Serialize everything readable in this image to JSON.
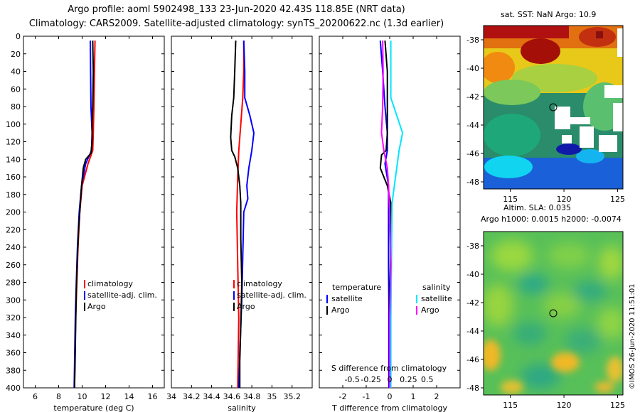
{
  "header": {
    "title_line1": "Argo profile: aoml 5902498_133 23-Jun-2020 42.43S 118.85E (NRT data)",
    "title_line2": "Climatology: CARS2009. Satellite-adjusted climatology: synTS_20200622.nc (1.3d earlier)"
  },
  "maps": {
    "sst_title": "sat. SST: NaN Argo: 10.9",
    "sla_title_line1": "Altim. SLA: 0.035",
    "sla_title_line2": "Argo h1000: 0.0015 h2000: -0.0074",
    "lat_ticks": [
      "-38",
      "-40",
      "-42",
      "-44",
      "-46",
      "-48"
    ],
    "lon_ticks": [
      "115",
      "120",
      "125"
    ],
    "argo_marker": {
      "lon": 118.85,
      "lat": -42.43
    }
  },
  "credit": "©IMOS 26-Jun-2020 11:51:01",
  "colors": {
    "climatology": "#ff0000",
    "satellite": "#0000ff",
    "argo": "#000000",
    "sat_salinity": "#00e5ff",
    "argo_salinity": "#ff00ff"
  },
  "chart_data": [
    {
      "type": "line",
      "panel": "temperature",
      "xlabel": "temperature (deg C)",
      "ylabel": "",
      "xlim": [
        5,
        17
      ],
      "ylim": [
        400,
        0
      ],
      "x_ticks": [
        "6",
        "8",
        "10",
        "12",
        "14",
        "16"
      ],
      "y_ticks": [
        "0",
        "20",
        "40",
        "60",
        "80",
        "100",
        "120",
        "140",
        "160",
        "180",
        "200",
        "220",
        "240",
        "260",
        "280",
        "300",
        "320",
        "340",
        "360",
        "380",
        "400"
      ],
      "legend": [
        "climatology",
        "satellite-adj. clim.",
        "Argo"
      ],
      "series": [
        {
          "name": "climatology",
          "color": "#ff0000",
          "points": [
            [
              11.1,
              5
            ],
            [
              11.05,
              40
            ],
            [
              11.0,
              80
            ],
            [
              10.95,
              110
            ],
            [
              10.9,
              130
            ],
            [
              10.5,
              145
            ],
            [
              10.0,
              170
            ],
            [
              9.8,
              200
            ],
            [
              9.65,
              240
            ],
            [
              9.55,
              280
            ],
            [
              9.45,
              320
            ],
            [
              9.4,
              360
            ],
            [
              9.35,
              400
            ]
          ]
        },
        {
          "name": "satellite-adj. clim.",
          "color": "#0000ff",
          "points": [
            [
              10.7,
              5
            ],
            [
              10.72,
              40
            ],
            [
              10.75,
              80
            ],
            [
              10.85,
              110
            ],
            [
              10.8,
              130
            ],
            [
              10.3,
              145
            ],
            [
              9.95,
              170
            ],
            [
              9.75,
              200
            ],
            [
              9.6,
              240
            ],
            [
              9.5,
              280
            ],
            [
              9.42,
              320
            ],
            [
              9.37,
              360
            ],
            [
              9.32,
              400
            ]
          ]
        },
        {
          "name": "Argo",
          "color": "#000000",
          "points": [
            [
              10.9,
              5
            ],
            [
              10.95,
              40
            ],
            [
              10.9,
              80
            ],
            [
              10.85,
              100
            ],
            [
              10.85,
              120
            ],
            [
              10.75,
              133
            ],
            [
              10.3,
              140
            ],
            [
              10.1,
              150
            ],
            [
              9.95,
              170
            ],
            [
              9.85,
              190
            ],
            [
              9.7,
              220
            ],
            [
              9.6,
              250
            ],
            [
              9.5,
              290
            ],
            [
              9.45,
              330
            ],
            [
              9.4,
              370
            ],
            [
              9.35,
              400
            ]
          ]
        }
      ]
    },
    {
      "type": "line",
      "panel": "salinity",
      "xlabel": "salinity",
      "ylabel": "",
      "xlim": [
        34.0,
        35.4
      ],
      "ylim": [
        400,
        0
      ],
      "x_ticks": [
        "34",
        "34.2",
        "34.4",
        "34.6",
        "34.8",
        "35",
        "35.2"
      ],
      "legend": [
        "climatology",
        "satellite-adj. clim.",
        "Argo"
      ],
      "series": [
        {
          "name": "climatology",
          "color": "#ff0000",
          "points": [
            [
              34.72,
              5
            ],
            [
              34.72,
              40
            ],
            [
              34.71,
              70
            ],
            [
              34.69,
              100
            ],
            [
              34.67,
              130
            ],
            [
              34.66,
              160
            ],
            [
              34.65,
              200
            ],
            [
              34.66,
              260
            ],
            [
              34.67,
              320
            ],
            [
              34.66,
              400
            ]
          ]
        },
        {
          "name": "satellite-adj. clim.",
          "color": "#0000ff",
          "points": [
            [
              34.72,
              5
            ],
            [
              34.73,
              40
            ],
            [
              34.73,
              70
            ],
            [
              34.78,
              90
            ],
            [
              34.82,
              110
            ],
            [
              34.8,
              130
            ],
            [
              34.77,
              150
            ],
            [
              34.75,
              170
            ],
            [
              34.76,
              185
            ],
            [
              34.72,
              200
            ],
            [
              34.71,
              250
            ],
            [
              34.7,
              300
            ],
            [
              34.68,
              360
            ],
            [
              34.67,
              400
            ]
          ]
        },
        {
          "name": "Argo",
          "color": "#000000",
          "points": [
            [
              34.64,
              5
            ],
            [
              34.63,
              40
            ],
            [
              34.62,
              70
            ],
            [
              34.6,
              90
            ],
            [
              34.59,
              115
            ],
            [
              34.6,
              130
            ],
            [
              34.63,
              137
            ],
            [
              34.66,
              150
            ],
            [
              34.68,
              170
            ],
            [
              34.69,
              190
            ],
            [
              34.69,
              230
            ],
            [
              34.7,
              280
            ],
            [
              34.69,
              330
            ],
            [
              34.68,
              370
            ],
            [
              34.68,
              400
            ]
          ]
        }
      ]
    },
    {
      "type": "line",
      "panel": "difference",
      "xlabel": "T difference from climatology",
      "xlabel_top": "S difference from climatology",
      "xlim": [
        -3,
        3
      ],
      "ylim": [
        400,
        0
      ],
      "x_ticks": [
        "-2",
        "-1",
        "0",
        "1",
        "2"
      ],
      "x_ticks_top": [
        "-0.5",
        "-0.25",
        "0",
        "0.25",
        "0.5"
      ],
      "legend_groups": [
        "temperature",
        "salinity"
      ],
      "legend": [
        "satellite",
        "Argo",
        "satellite",
        "Argo"
      ],
      "series": [
        {
          "name": "satellite",
          "group": "temperature",
          "color": "#0000ff",
          "points": [
            [
              -0.4,
              5
            ],
            [
              -0.3,
              40
            ],
            [
              -0.2,
              80
            ],
            [
              -0.1,
              110
            ],
            [
              -0.1,
              130
            ],
            [
              -0.2,
              145
            ],
            [
              -0.05,
              170
            ],
            [
              -0.05,
              200
            ],
            [
              -0.05,
              260
            ],
            [
              -0.03,
              320
            ],
            [
              -0.03,
              400
            ]
          ]
        },
        {
          "name": "Argo",
          "group": "temperature",
          "color": "#000000",
          "points": [
            [
              -0.2,
              5
            ],
            [
              -0.1,
              40
            ],
            [
              -0.1,
              80
            ],
            [
              -0.1,
              110
            ],
            [
              -0.15,
              130
            ],
            [
              -0.35,
              135
            ],
            [
              -0.4,
              150
            ],
            [
              -0.1,
              170
            ],
            [
              0.05,
              190
            ],
            [
              0.05,
              240
            ],
            [
              0.0,
              300
            ],
            [
              0.0,
              400
            ]
          ]
        },
        {
          "name": "satellite",
          "group": "salinity",
          "color": "#00e5ff",
          "points": [
            [
              0.05,
              5
            ],
            [
              0.05,
              40
            ],
            [
              0.05,
              70
            ],
            [
              0.3,
              90
            ],
            [
              0.55,
              110
            ],
            [
              0.4,
              130
            ],
            [
              0.3,
              150
            ],
            [
              0.2,
              170
            ],
            [
              0.1,
              190
            ],
            [
              0.08,
              250
            ],
            [
              0.05,
              320
            ],
            [
              0.05,
              400
            ]
          ]
        },
        {
          "name": "Argo",
          "group": "salinity",
          "color": "#ff00ff",
          "points": [
            [
              -0.3,
              5
            ],
            [
              -0.28,
              40
            ],
            [
              -0.3,
              80
            ],
            [
              -0.35,
              110
            ],
            [
              -0.25,
              130
            ],
            [
              -0.1,
              150
            ],
            [
              -0.05,
              170
            ],
            [
              0.0,
              200
            ],
            [
              0.05,
              260
            ],
            [
              0.0,
              320
            ],
            [
              0.0,
              400
            ]
          ]
        }
      ]
    }
  ]
}
